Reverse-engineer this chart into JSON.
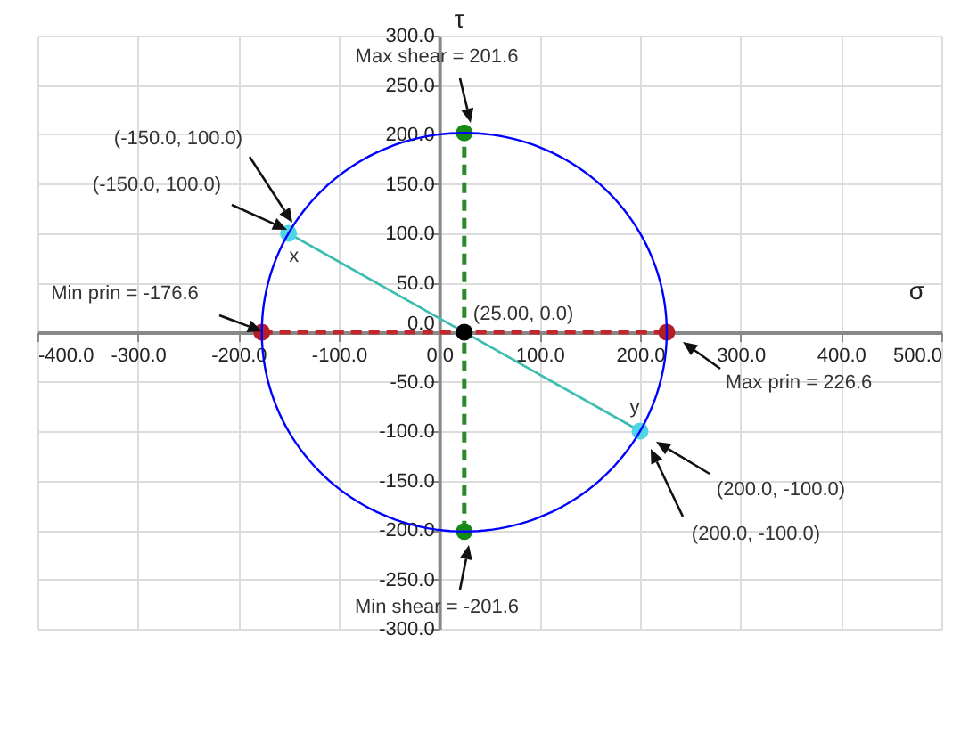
{
  "chart_data": {
    "type": "line",
    "xlabel": "σ",
    "ylabel": "τ",
    "xlim": [
      -400,
      500
    ],
    "ylim": [
      -300,
      300
    ],
    "xticks": [
      {
        "value": -400,
        "label": "-400.0"
      },
      {
        "value": -300,
        "label": "-300.0"
      },
      {
        "value": -200,
        "label": "-200.0"
      },
      {
        "value": -100,
        "label": "-100.0"
      },
      {
        "value": 0,
        "label": "0.0"
      },
      {
        "value": 100,
        "label": "100.0"
      },
      {
        "value": 200,
        "label": "200.0"
      },
      {
        "value": 300,
        "label": "300.0"
      },
      {
        "value": 400,
        "label": "400.0"
      },
      {
        "value": 500,
        "label": "500.0"
      }
    ],
    "yticks": [
      {
        "value": -300,
        "label": "-300.0"
      },
      {
        "value": -250,
        "label": "-250.0"
      },
      {
        "value": -200,
        "label": "-200.0"
      },
      {
        "value": -150,
        "label": "-150.0"
      },
      {
        "value": -100,
        "label": "-100.0"
      },
      {
        "value": -50,
        "label": "-50.0"
      },
      {
        "value": 0,
        "label": "0.0"
      },
      {
        "value": 50,
        "label": "50.0"
      },
      {
        "value": 100,
        "label": "100.0"
      },
      {
        "value": 150,
        "label": "150.0"
      },
      {
        "value": 200,
        "label": "200.0"
      },
      {
        "value": 250,
        "label": "250.0"
      },
      {
        "value": 300,
        "label": "300.0"
      }
    ],
    "grid": true,
    "series": [
      {
        "type": "line",
        "color": "#c0282d",
        "line_style": "dashed",
        "x": [
          -176.6,
          226.6
        ],
        "values": [
          0,
          0
        ]
      },
      {
        "type": "line",
        "color": "#2a8a2a",
        "line_style": "dashed",
        "x": [
          25,
          25
        ],
        "values": [
          -201.6,
          201.6
        ]
      },
      {
        "type": "line",
        "color": "#3dbdb0",
        "x": [
          -150,
          200
        ],
        "values": [
          100,
          -100
        ]
      },
      {
        "type": "scatter",
        "color": "#b41e24",
        "x": [
          -176.6,
          226.6
        ],
        "values": [
          0,
          0
        ]
      },
      {
        "type": "scatter",
        "color": "#168a16",
        "x": [
          25,
          25
        ],
        "values": [
          201.6,
          -201.6
        ]
      },
      {
        "type": "scatter",
        "color": "#000000",
        "x": [
          25
        ],
        "values": [
          0
        ]
      },
      {
        "type": "scatter",
        "color": "#4fd6e6",
        "x": [
          -150,
          200
        ],
        "values": [
          100,
          -100
        ]
      }
    ],
    "annotations": [
      "Max shear = 201.6",
      "Min shear = -201.6",
      "(-150.0, 100.0)",
      "(-150.0, 100.0)",
      "Min prin = -176.6",
      "Max prin = 226.6",
      "(200.0, -100.0)",
      "(200.0, -100.0)",
      {
        "text": "(25.00, 0.0)",
        "x": 25,
        "y": 0
      },
      {
        "text": "x",
        "x": -150,
        "y": 100
      },
      {
        "text": "y",
        "x": 200,
        "y": -100
      }
    ]
  }
}
